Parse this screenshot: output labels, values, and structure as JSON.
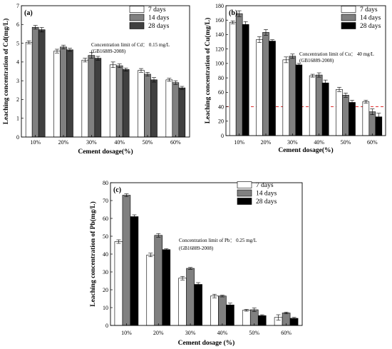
{
  "chart_data": [
    {
      "type": "bar",
      "panel_label": "(a)",
      "categories": [
        "10%",
        "20%",
        "30%",
        "40%",
        "50%",
        "60%"
      ],
      "series": [
        {
          "name": "7 days",
          "color": "#ffffff",
          "values": [
            5.05,
            4.58,
            4.1,
            3.85,
            3.55,
            3.05
          ],
          "errors": [
            0.08,
            0.1,
            0.1,
            0.15,
            0.1,
            0.08
          ]
        },
        {
          "name": "14 days",
          "color": "#808080",
          "values": [
            5.85,
            4.8,
            4.35,
            3.8,
            3.35,
            2.9
          ],
          "errors": [
            0.1,
            0.1,
            0.15,
            0.1,
            0.1,
            0.1
          ]
        },
        {
          "name": "28 days",
          "color": "#404040",
          "values": [
            5.72,
            4.65,
            4.2,
            3.6,
            3.05,
            2.62
          ],
          "errors": [
            0.12,
            0.08,
            0.1,
            0.08,
            0.12,
            0.08
          ]
        }
      ],
      "xlabel": "Cement dosage(%)",
      "ylabel": "Leaching concentration of Cd(mg/L)",
      "ylim": [
        0,
        7
      ],
      "yticks": [
        0,
        1,
        2,
        3,
        4,
        5,
        6,
        7
      ],
      "annotation": [
        "Concentration limit of Cd： 0.15 mg/L",
        "(GB16889-2008)"
      ],
      "legend_position": "top-right"
    },
    {
      "type": "bar",
      "panel_label": "(b)",
      "categories": [
        "10%",
        "20%",
        "30%",
        "40%",
        "50%",
        "60%"
      ],
      "series": [
        {
          "name": "7 days",
          "color": "#ffffff",
          "values": [
            157,
            133,
            105,
            83,
            64,
            47
          ],
          "errors": [
            2,
            4,
            4,
            2,
            3,
            2
          ]
        },
        {
          "name": "14 days",
          "color": "#808080",
          "values": [
            169,
            143,
            110,
            84,
            56,
            33
          ],
          "errors": [
            4,
            4,
            3,
            3,
            3,
            4
          ]
        },
        {
          "name": "28 days",
          "color": "#000000",
          "values": [
            154,
            131,
            98,
            73,
            46,
            26
          ],
          "errors": [
            4,
            2,
            2,
            4,
            3,
            5
          ]
        }
      ],
      "xlabel": "Cement dosage(%)",
      "ylabel": "Leaching concentration of Cu(mg/L)",
      "ylim": [
        0,
        180
      ],
      "yticks": [
        0,
        20,
        40,
        60,
        80,
        100,
        120,
        140,
        160,
        180
      ],
      "reference_line": {
        "value": 40,
        "color": "#e03030"
      },
      "annotation": [
        "Concentration limit of Cu： 40 mg/L",
        "(GB16889-2008)"
      ],
      "legend_position": "top-right"
    },
    {
      "type": "bar",
      "panel_label": "(c)",
      "categories": [
        "10%",
        "20%",
        "30%",
        "40%",
        "50%",
        "60%"
      ],
      "series": [
        {
          "name": "7 days",
          "color": "#ffffff",
          "values": [
            47,
            39.5,
            26.5,
            16.5,
            8.5,
            4.5
          ],
          "errors": [
            1,
            1,
            1,
            1,
            0.5,
            1.5
          ]
        },
        {
          "name": "14 days",
          "color": "#808080",
          "values": [
            73,
            50.5,
            32,
            16.5,
            8.8,
            7
          ],
          "errors": [
            0.8,
            1,
            0.5,
            0.5,
            1,
            0.5
          ]
        },
        {
          "name": "28 days",
          "color": "#000000",
          "values": [
            61,
            42.5,
            23,
            11.5,
            5.5,
            4
          ],
          "errors": [
            1,
            0.5,
            1,
            1,
            0.5,
            0.5
          ]
        }
      ],
      "xlabel": "Cement dosage (%)",
      "ylabel": "Leaching concentration of Pb(mg/L)",
      "ylim": [
        0,
        80
      ],
      "yticks": [
        0,
        10,
        20,
        30,
        40,
        50,
        60,
        70,
        80
      ],
      "annotation": [
        "Concentration limit of Pb： 0.25 mg/L",
        "(GB16889-2008)"
      ],
      "legend_position": "top-right"
    }
  ]
}
